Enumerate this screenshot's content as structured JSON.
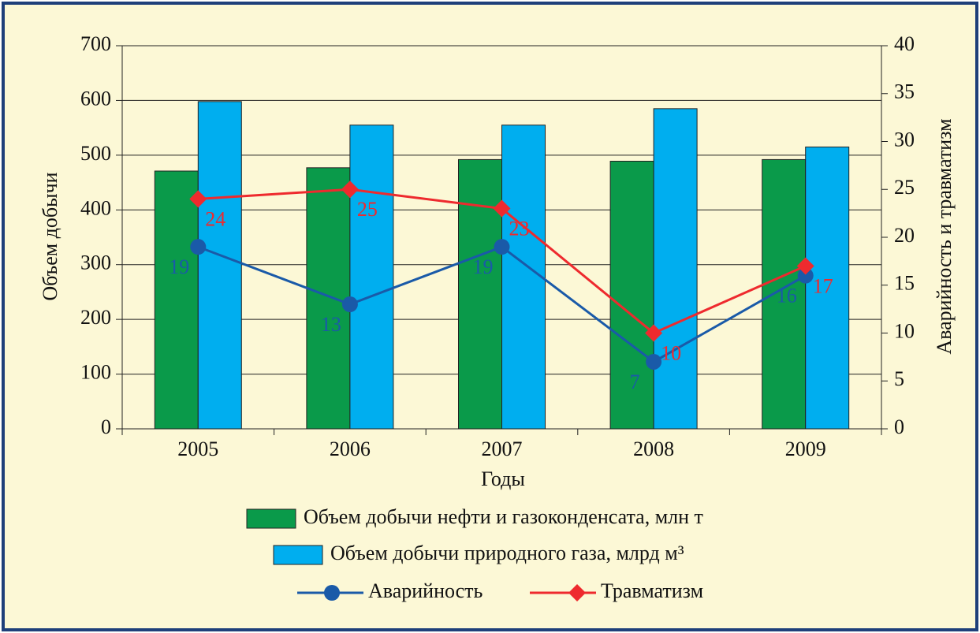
{
  "chart_data": {
    "type": "bar",
    "categories": [
      "2005",
      "2006",
      "2007",
      "2008",
      "2009"
    ],
    "x_label": "Годы",
    "y_label": "Объем добычи",
    "y2_label": "Аварийность и травматизм",
    "ylim": [
      0,
      700
    ],
    "yticks": [
      0,
      100,
      200,
      300,
      400,
      500,
      600,
      700
    ],
    "y2lim": [
      0,
      40
    ],
    "y2ticks": [
      0,
      5,
      10,
      15,
      20,
      25,
      30,
      35,
      40
    ],
    "grid": true,
    "series": [
      {
        "name": "Объем добычи нефти и газоконденсата, млн т",
        "type": "bar",
        "color": "#0a9a4a",
        "values": [
          471,
          477,
          492,
          489,
          492
        ]
      },
      {
        "name": "Объем добычи природного газа, млрд м³",
        "type": "bar",
        "color": "#00aeef",
        "values": [
          598,
          555,
          555,
          585,
          515
        ]
      },
      {
        "name": "Аварийность",
        "type": "line",
        "axis": "y2",
        "color": "#1a5aa8",
        "marker": "circle",
        "values": [
          19,
          13,
          19,
          7,
          16
        ]
      },
      {
        "name": "Травматизм",
        "type": "line",
        "axis": "y2",
        "color": "#ee2a2e",
        "marker": "diamond",
        "values": [
          24,
          25,
          23,
          10,
          17
        ]
      }
    ]
  }
}
